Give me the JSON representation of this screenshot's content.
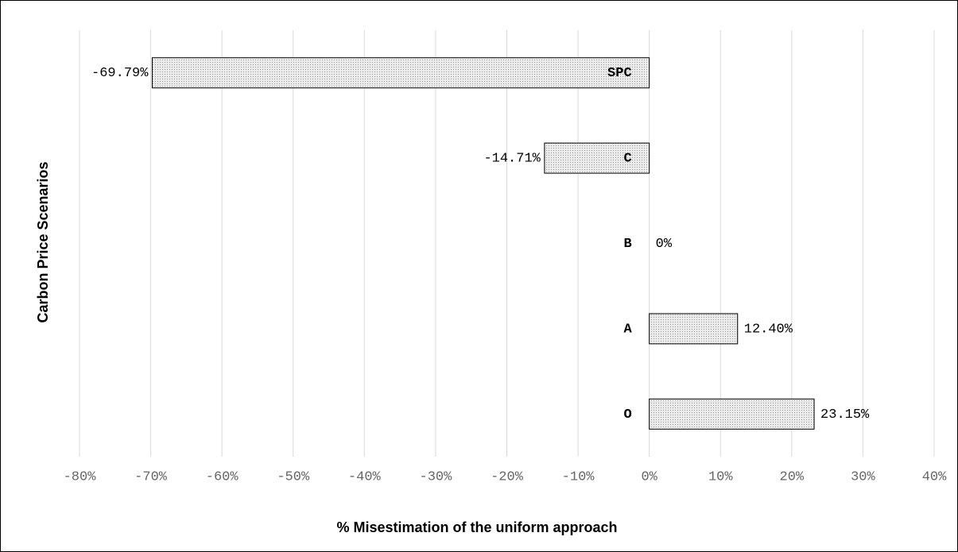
{
  "chart_data": {
    "type": "bar",
    "orientation": "horizontal",
    "x_label": "% Misestimation of the uniform approach",
    "y_label": "Carbon Price Scenarios",
    "categories": [
      "SPC",
      "C",
      "B",
      "A",
      "O"
    ],
    "values": [
      -69.79,
      -14.71,
      0,
      12.4,
      23.15
    ],
    "value_labels": [
      "-69.79%",
      "-14.71%",
      "0%",
      "12.40%",
      "23.15%"
    ],
    "color": "#e2e2e2",
    "xlim": [
      -80,
      40
    ],
    "xticks": [
      {
        "value": -80,
        "label": "-80%"
      },
      {
        "value": -70,
        "label": "-70%"
      },
      {
        "value": -60,
        "label": "-60%"
      },
      {
        "value": -50,
        "label": "-50%"
      },
      {
        "value": -40,
        "label": "-40%"
      },
      {
        "value": -30,
        "label": "-30%"
      },
      {
        "value": -20,
        "label": "-20%"
      },
      {
        "value": -10,
        "label": "-10%"
      },
      {
        "value": 0,
        "label": "0%"
      },
      {
        "value": 10,
        "label": "10%"
      },
      {
        "value": 20,
        "label": "20%"
      },
      {
        "value": 30,
        "label": "30%"
      },
      {
        "value": 40,
        "label": "40%"
      }
    ],
    "grid": true
  }
}
